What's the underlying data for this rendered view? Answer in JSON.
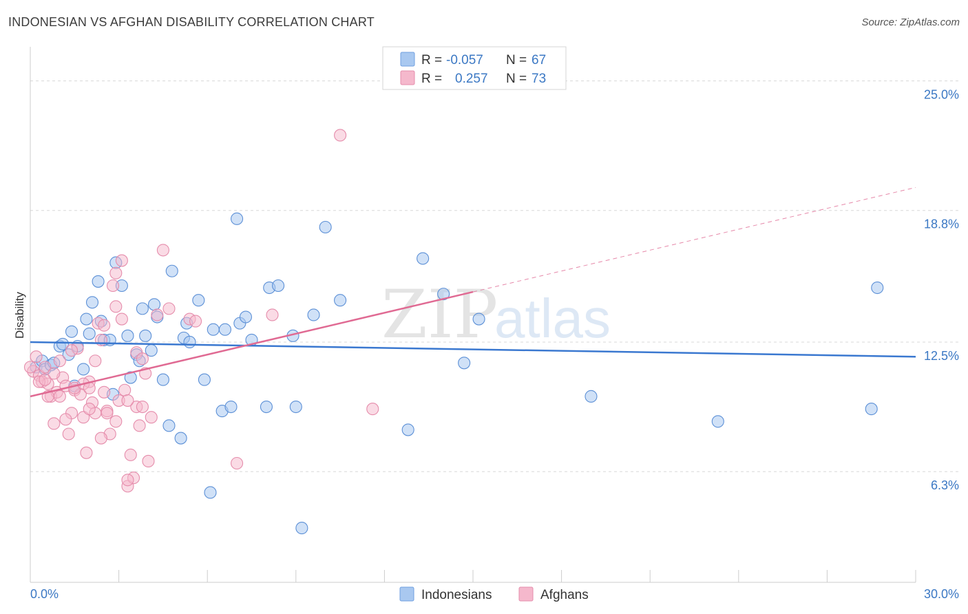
{
  "header": {
    "title": "INDONESIAN VS AFGHAN DISABILITY CORRELATION CHART",
    "source": "Source: ZipAtlas.com"
  },
  "watermark": {
    "zip": "ZIP",
    "atlas": "atlas"
  },
  "colors": {
    "indonesians": "#3a78d0",
    "indonesians_fill": "#a9c8f0",
    "afghans": "#e06a93",
    "afghans_fill": "#f5b8cc",
    "tick_text": "#3b78c4",
    "grid": "#d8d8d8"
  },
  "stats_legend": {
    "rows": [
      {
        "r_label": "R =",
        "r_value": "-0.057",
        "n_label": "N =",
        "n_value": "67"
      },
      {
        "r_label": "R =",
        "r_value": "0.257",
        "n_label": "N =",
        "n_value": "73"
      }
    ]
  },
  "chart_data": {
    "type": "scatter",
    "title": "INDONESIAN VS AFGHAN DISABILITY CORRELATION CHART",
    "xlabel": "",
    "ylabel": "Disability",
    "xlim": [
      0,
      30
    ],
    "ylim": [
      1.0,
      26.5
    ],
    "x_tick_labels": [
      "0.0%",
      "30.0%"
    ],
    "y_ticks": [
      6.3,
      12.5,
      18.8,
      25.0
    ],
    "y_tick_labels": [
      "6.3%",
      "12.5%",
      "18.8%",
      "25.0%"
    ],
    "grid": "horizontal dashed",
    "legend_position": "bottom-center",
    "series": [
      {
        "name": "Indonesians",
        "r": -0.057,
        "n": 67,
        "trend": {
          "x": [
            0,
            30
          ],
          "y": [
            12.5,
            11.8
          ]
        },
        "points": [
          [
            0.2,
            11.3
          ],
          [
            0.4,
            11.6
          ],
          [
            0.5,
            11.2
          ],
          [
            0.7,
            11.4
          ],
          [
            0.8,
            11.5
          ],
          [
            1.0,
            12.3
          ],
          [
            1.1,
            12.4
          ],
          [
            1.3,
            11.9
          ],
          [
            1.4,
            13.0
          ],
          [
            1.5,
            10.4
          ],
          [
            1.6,
            12.3
          ],
          [
            1.8,
            11.2
          ],
          [
            1.9,
            13.6
          ],
          [
            2.0,
            12.9
          ],
          [
            2.1,
            14.4
          ],
          [
            2.3,
            15.4
          ],
          [
            2.4,
            13.5
          ],
          [
            2.5,
            12.6
          ],
          [
            2.7,
            12.6
          ],
          [
            2.8,
            10.0
          ],
          [
            2.9,
            16.3
          ],
          [
            3.1,
            15.2
          ],
          [
            3.3,
            12.8
          ],
          [
            3.4,
            10.8
          ],
          [
            3.6,
            11.9
          ],
          [
            3.7,
            11.6
          ],
          [
            3.8,
            14.1
          ],
          [
            3.9,
            12.8
          ],
          [
            4.1,
            12.1
          ],
          [
            4.2,
            14.3
          ],
          [
            4.3,
            13.7
          ],
          [
            4.5,
            10.7
          ],
          [
            4.7,
            8.5
          ],
          [
            4.8,
            15.9
          ],
          [
            5.1,
            7.9
          ],
          [
            5.2,
            12.7
          ],
          [
            5.3,
            13.4
          ],
          [
            5.4,
            12.5
          ],
          [
            5.7,
            14.5
          ],
          [
            5.9,
            10.7
          ],
          [
            6.1,
            5.3
          ],
          [
            6.2,
            13.1
          ],
          [
            6.5,
            9.2
          ],
          [
            6.6,
            13.1
          ],
          [
            6.8,
            9.4
          ],
          [
            7.0,
            18.4
          ],
          [
            7.1,
            13.4
          ],
          [
            7.3,
            13.7
          ],
          [
            7.5,
            12.6
          ],
          [
            8.0,
            9.4
          ],
          [
            8.1,
            15.1
          ],
          [
            8.4,
            15.2
          ],
          [
            8.9,
            12.8
          ],
          [
            9.0,
            9.4
          ],
          [
            9.2,
            3.6
          ],
          [
            9.6,
            13.8
          ],
          [
            10.0,
            18.0
          ],
          [
            10.5,
            14.5
          ],
          [
            12.8,
            8.3
          ],
          [
            13.3,
            16.5
          ],
          [
            14.0,
            14.8
          ],
          [
            14.7,
            11.5
          ],
          [
            15.2,
            13.6
          ],
          [
            19.0,
            9.9
          ],
          [
            23.3,
            8.7
          ],
          [
            28.5,
            9.3
          ],
          [
            28.7,
            15.1
          ]
        ]
      },
      {
        "name": "Afghans",
        "r": 0.257,
        "n": 73,
        "trend": {
          "x": [
            0,
            15
          ],
          "y": [
            9.9,
            14.9
          ]
        },
        "trend_dashed": {
          "x": [
            15,
            30
          ],
          "y": [
            14.9,
            19.9
          ]
        },
        "points": [
          [
            0.1,
            11.1
          ],
          [
            0.2,
            11.8
          ],
          [
            0.3,
            10.9
          ],
          [
            0.4,
            10.6
          ],
          [
            0.5,
            11.3
          ],
          [
            0.6,
            10.5
          ],
          [
            0.7,
            9.9
          ],
          [
            0.8,
            8.6
          ],
          [
            0.9,
            10.1
          ],
          [
            1.0,
            11.6
          ],
          [
            1.1,
            10.8
          ],
          [
            1.2,
            10.4
          ],
          [
            1.3,
            8.1
          ],
          [
            1.4,
            9.1
          ],
          [
            1.5,
            10.2
          ],
          [
            1.6,
            12.2
          ],
          [
            1.7,
            10.0
          ],
          [
            1.8,
            8.9
          ],
          [
            1.9,
            7.2
          ],
          [
            2.0,
            10.6
          ],
          [
            2.1,
            9.6
          ],
          [
            2.2,
            11.6
          ],
          [
            2.3,
            13.4
          ],
          [
            2.4,
            12.6
          ],
          [
            2.5,
            10.1
          ],
          [
            2.6,
            9.2
          ],
          [
            2.7,
            8.1
          ],
          [
            2.8,
            15.2
          ],
          [
            2.9,
            14.2
          ],
          [
            3.0,
            9.7
          ],
          [
            3.1,
            13.6
          ],
          [
            3.2,
            10.2
          ],
          [
            3.3,
            5.6
          ],
          [
            3.4,
            7.1
          ],
          [
            3.5,
            6.0
          ],
          [
            3.6,
            9.4
          ],
          [
            3.7,
            8.5
          ],
          [
            3.8,
            9.4
          ],
          [
            3.9,
            11.0
          ],
          [
            4.0,
            6.8
          ],
          [
            4.1,
            8.9
          ],
          [
            4.3,
            13.8
          ],
          [
            4.5,
            16.9
          ],
          [
            4.7,
            14.1
          ],
          [
            5.4,
            13.6
          ],
          [
            5.6,
            13.5
          ],
          [
            7.0,
            6.7
          ],
          [
            8.2,
            13.8
          ],
          [
            10.5,
            22.4
          ],
          [
            11.6,
            9.3
          ],
          [
            2.9,
            15.8
          ],
          [
            3.1,
            16.4
          ],
          [
            1.0,
            9.9
          ],
          [
            0.3,
            10.6
          ],
          [
            2.2,
            9.1
          ],
          [
            2.6,
            9.1
          ],
          [
            1.5,
            10.3
          ],
          [
            3.3,
            5.9
          ],
          [
            2.9,
            8.7
          ],
          [
            1.2,
            8.8
          ],
          [
            2.4,
            7.9
          ],
          [
            0.5,
            10.7
          ],
          [
            1.8,
            10.5
          ],
          [
            2.0,
            10.3
          ],
          [
            3.6,
            12.0
          ],
          [
            2.5,
            13.3
          ],
          [
            1.4,
            12.1
          ],
          [
            3.3,
            9.7
          ],
          [
            0.8,
            11.0
          ],
          [
            0.6,
            9.9
          ],
          [
            3.8,
            11.7
          ],
          [
            2.0,
            9.3
          ],
          [
            0.0,
            11.3
          ]
        ]
      }
    ]
  },
  "bottom_legend": {
    "items": [
      "Indonesians",
      "Afghans"
    ]
  }
}
